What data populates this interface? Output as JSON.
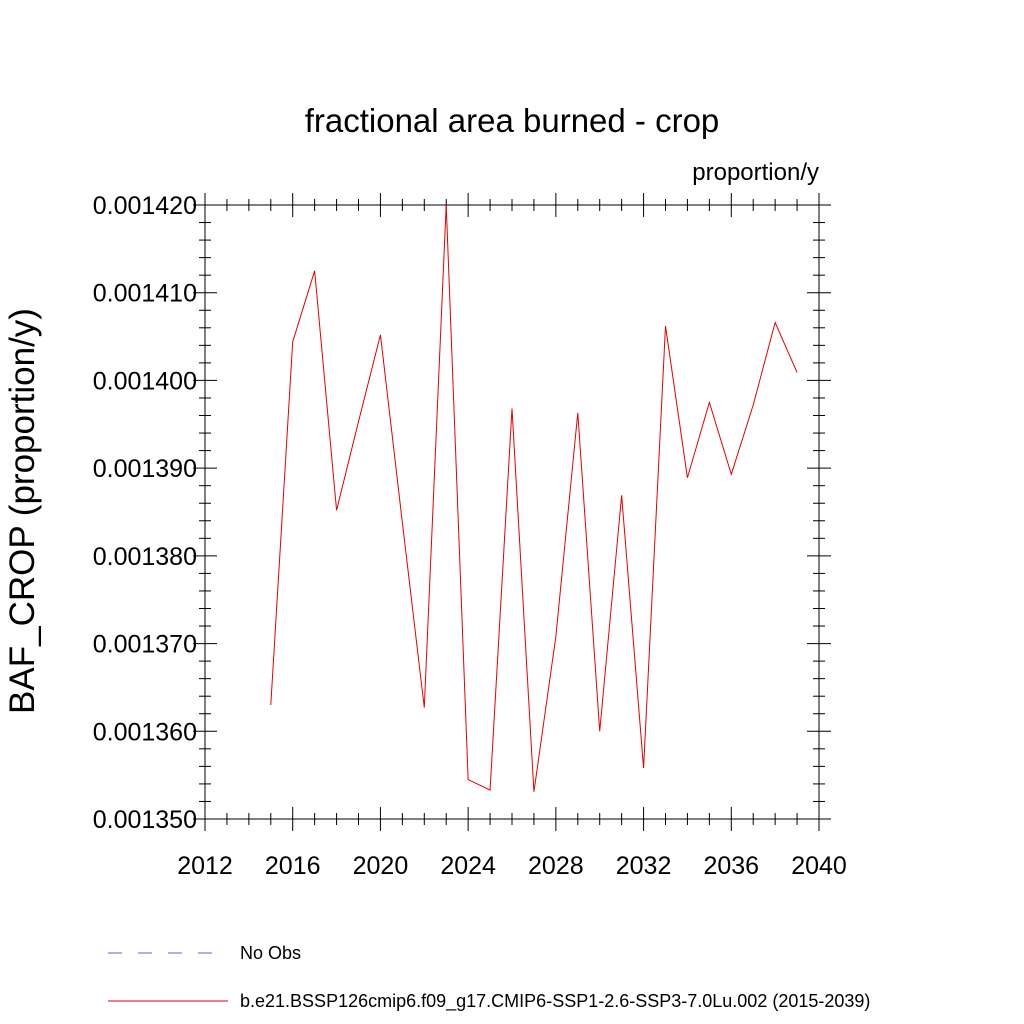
{
  "chart_data": {
    "type": "line",
    "title": "fractional area burned - crop",
    "units": "proportion/y",
    "ylabel": "BAF_CROP  (proportion/y)",
    "xlabel": "",
    "xlim": [
      2012,
      2040
    ],
    "ylim": [
      0.00135,
      0.00142
    ],
    "x_ticks": [
      2012,
      2016,
      2020,
      2024,
      2028,
      2032,
      2036,
      2040
    ],
    "x_tick_labels": [
      "2012",
      "2016",
      "2020",
      "2024",
      "2028",
      "2032",
      "2036",
      "2040"
    ],
    "y_ticks": [
      0.00135,
      0.00136,
      0.00137,
      0.00138,
      0.00139,
      0.0014,
      0.00141,
      0.00142
    ],
    "y_tick_labels": [
      "0.001350",
      "0.001360",
      "0.001370",
      "0.001380",
      "0.001390",
      "0.001400",
      "0.001410",
      "0.001420"
    ],
    "grid": false,
    "legend_position": "bottom",
    "series": [
      {
        "name": "b.e21.BSSP126cmip6.f09_g17.CMIP6-SSP1-2.6-SSP3-7.0Lu.002 (2015-2039)",
        "color": "#e60000",
        "style": "solid",
        "x": [
          2015,
          2016,
          2017,
          2018,
          2019,
          2020,
          2021,
          2022,
          2023,
          2024,
          2025,
          2026,
          2027,
          2028,
          2029,
          2030,
          2031,
          2032,
          2033,
          2034,
          2035,
          2036,
          2037,
          2038,
          2039
        ],
        "y": [
          0.001363,
          0.0014044,
          0.0014125,
          0.0013852,
          0.0013953,
          0.0014052,
          0.0013838,
          0.0013627,
          0.00142,
          0.0013545,
          0.0013533,
          0.0013968,
          0.0013531,
          0.0013708,
          0.0013963,
          0.00136,
          0.0013869,
          0.0013558,
          0.0014062,
          0.0013889,
          0.0013975,
          0.0013893,
          0.0013972,
          0.0014066,
          0.0014009
        ]
      }
    ],
    "legend": [
      {
        "label": "No Obs",
        "color": "#6a5acd",
        "style": "dashed"
      },
      {
        "label": "b.e21.BSSP126cmip6.f09_g17.CMIP6-SSP1-2.6-SSP3-7.0Lu.002 (2015-2039)",
        "color": "#e60000",
        "style": "solid"
      }
    ]
  }
}
